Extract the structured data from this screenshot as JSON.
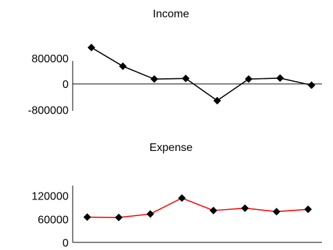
{
  "chart_data": [
    {
      "type": "line",
      "title": "Income",
      "xlabel": "",
      "ylabel": "",
      "y_ticks": [
        {
          "value": 800000,
          "label": "800000"
        },
        {
          "value": 0,
          "label": "0"
        },
        {
          "value": -800000,
          "label": "-800000"
        }
      ],
      "ylim": [
        -1050000,
        1100000
      ],
      "grid": false,
      "legend": "none",
      "series": [
        {
          "color": "#000000",
          "marker": "diamond",
          "values": [
            1130000,
            550000,
            150000,
            170000,
            -520000,
            150000,
            180000,
            -40000
          ]
        }
      ]
    },
    {
      "type": "line",
      "title": "Expense",
      "xlabel": "",
      "ylabel": "",
      "y_ticks": [
        {
          "value": 120000,
          "label": "120000"
        },
        {
          "value": 60000,
          "label": "60000"
        },
        {
          "value": 0,
          "label": "0"
        }
      ],
      "ylim": [
        0,
        130000
      ],
      "grid": false,
      "legend": "none",
      "series": [
        {
          "color": "#ff0000",
          "marker": "diamond",
          "values": [
            65000,
            64000,
            73000,
            114000,
            82000,
            88000,
            79000,
            85000
          ]
        }
      ]
    }
  ]
}
